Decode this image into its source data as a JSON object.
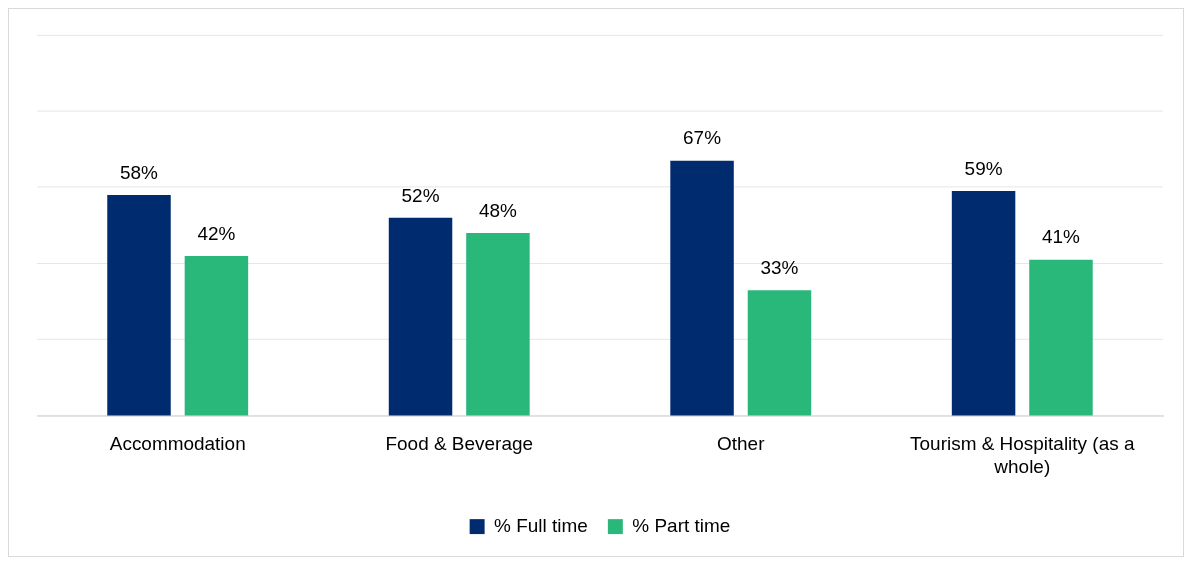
{
  "chart_data": {
    "type": "bar",
    "categories": [
      "Accommodation",
      "Food & Beverage",
      "Other",
      "Tourism & Hospitality (as a whole)"
    ],
    "series": [
      {
        "name": "% Full time",
        "color": "#002b6e",
        "values": [
          58,
          52,
          67,
          59
        ],
        "value_labels": [
          "58%",
          "52%",
          "67%",
          "59%"
        ]
      },
      {
        "name": "% Part time",
        "color": "#29b77a",
        "values": [
          42,
          48,
          33,
          41
        ],
        "value_labels": [
          "42%",
          "48%",
          "33%",
          "41%"
        ]
      }
    ],
    "ylim": [
      0,
      100
    ],
    "yticks": [
      {
        "value": 0,
        "label": null
      },
      {
        "value": 20,
        "label": null
      },
      {
        "value": 40,
        "label": null
      },
      {
        "value": 60,
        "label": null
      },
      {
        "value": 80,
        "label": null
      },
      {
        "value": 100,
        "label": null
      }
    ],
    "tick_labels": "x",
    "grid": "y",
    "legend": "bottom"
  }
}
